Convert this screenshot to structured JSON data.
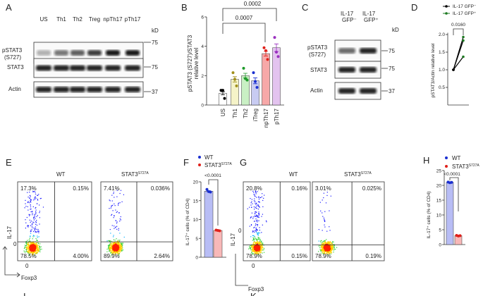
{
  "panels": {
    "A": {
      "label": "A",
      "lanes": [
        "US",
        "Th1",
        "Th2",
        "Treg",
        "npTh17",
        "pTh17"
      ],
      "rows": [
        "pSTAT3\n(S727)",
        "STAT3",
        "Actin"
      ],
      "row_pstat3": "pSTAT3",
      "row_pstat3_site": "(S727)",
      "row_stat3": "STAT3",
      "row_actin": "Actin",
      "kd": "kD",
      "markers": [
        "75",
        "75",
        "37"
      ]
    },
    "B": {
      "label": "B",
      "ylabel_1": "pSTAT3 (S727)/STAT3",
      "ylabel_2": "relative level",
      "pvals": [
        "0.0002",
        "0.0007"
      ]
    },
    "C": {
      "label": "C",
      "col1": "IL-17",
      "col1_sub": "GFP⁻",
      "col2": "IL-17",
      "col2_sub": "GFP⁺",
      "row_pstat3": "pSTAT3",
      "row_pstat3_site": "(S727)",
      "row_stat3": "STAT3",
      "row_actin": "Actin",
      "kd": "kD",
      "markers": [
        "75",
        "75",
        "37"
      ]
    },
    "D": {
      "label": "D",
      "legend": [
        "IL-17 GFP⁻",
        "IL-17 GFP⁺"
      ],
      "ylabel": "pSTAT3/Actin relative level",
      "pval": "0.0160"
    },
    "E": {
      "label": "E",
      "titles": [
        "WT",
        "STAT3"
      ],
      "title_sup": "S727A",
      "yaxis": "IL-17",
      "xaxis": "Foxp3",
      "zero": "0",
      "quadrants": [
        [
          "17.3%",
          "0.15%",
          "78.5%",
          "4.00%"
        ],
        [
          "7.41%",
          "0.036%",
          "89.9%",
          "2.64%"
        ]
      ]
    },
    "F": {
      "label": "F",
      "legend": [
        "WT",
        "STAT3"
      ],
      "legend_sup": "S727A",
      "ylabel": "IL-17⁺ cells (% of CD4)",
      "pval": "<0.0001"
    },
    "G": {
      "label": "G",
      "titles": [
        "WT",
        "STAT3"
      ],
      "title_sup": "S727A",
      "yaxis": "IL-17",
      "xaxis": "Foxp3",
      "zero": "0",
      "quadrants": [
        [
          "20.8%",
          "0.16%",
          "78.9%",
          "0.15%"
        ],
        [
          "3.01%",
          "0.025%",
          "78.9%",
          "0.19%"
        ]
      ]
    },
    "H": {
      "label": "H",
      "legend": [
        "WT",
        "STAT3"
      ],
      "legend_sup": "S727A",
      "ylabel": "IL-17⁺ cells (% of CD4)",
      "pval": "<0.0001"
    },
    "I": {
      "label": "I"
    },
    "K": {
      "label": "K"
    }
  },
  "chart_data": [
    {
      "panel": "B",
      "type": "bar",
      "categories": [
        "US",
        "Th1",
        "Th2",
        "iTreg",
        "npTh17",
        "pTh17"
      ],
      "values": [
        0.8,
        1.75,
        2.0,
        1.65,
        3.5,
        3.9
      ],
      "points": [
        [
          1.0,
          1.0,
          0.45
        ],
        [
          2.2,
          1.75,
          1.3
        ],
        [
          2.5,
          1.8,
          1.7
        ],
        [
          2.2,
          1.6,
          1.2
        ],
        [
          3.9,
          3.7,
          3.1
        ],
        [
          4.6,
          3.6,
          3.3
        ]
      ],
      "colors": [
        "#ffffff",
        "#f5f3c8",
        "#c9f0c4",
        "#c8cbf2",
        "#f7a8a8",
        "#e3c3ef"
      ],
      "point_colors": [
        "#000000",
        "#a08f1a",
        "#1e9a2a",
        "#1a2fd0",
        "#e0201a",
        "#9a2fbf"
      ],
      "yticks": [
        0,
        2,
        4,
        6
      ],
      "ylim": [
        0,
        6
      ]
    },
    {
      "panel": "D",
      "type": "line",
      "categories": [
        "IL-17 GFP⁻",
        "IL-17 GFP⁺"
      ],
      "series": [
        {
          "values": [
            1.0,
            1.93
          ]
        },
        {
          "values": [
            1.0,
            1.83
          ]
        },
        {
          "values": [
            1.0,
            1.37
          ]
        }
      ],
      "colors": [
        "#000000",
        "#1e7a22"
      ],
      "yticks": [
        0.5,
        1.0,
        1.5,
        2.0
      ],
      "ylim": [
        0,
        2.0
      ]
    },
    {
      "panel": "F",
      "type": "bar",
      "categories": [
        "WT",
        "STAT3 S727A"
      ],
      "values": [
        17.5,
        7.1
      ],
      "points": [
        [
          18.0,
          17.4,
          17.3
        ],
        [
          7.2,
          7.1,
          7.0
        ]
      ],
      "colors": [
        "#b8bdf5",
        "#f8b8b8"
      ],
      "point_colors": [
        "#1a2fd0",
        "#e0201a"
      ],
      "yticks": [
        0,
        5,
        10,
        15,
        20
      ],
      "ylim": [
        0,
        20
      ]
    },
    {
      "panel": "H",
      "type": "bar",
      "categories": [
        "WT",
        "STAT3 S727A"
      ],
      "values": [
        21.0,
        3.0
      ],
      "points": [
        [
          21.1,
          20.9,
          21.0
        ],
        [
          3.1,
          2.9,
          3.0
        ]
      ],
      "colors": [
        "#b8bdf5",
        "#f8b8b8"
      ],
      "point_colors": [
        "#1a2fd0",
        "#e0201a"
      ],
      "yticks": [
        0,
        5,
        10,
        15,
        20,
        25
      ],
      "ylim": [
        0,
        25
      ]
    }
  ]
}
